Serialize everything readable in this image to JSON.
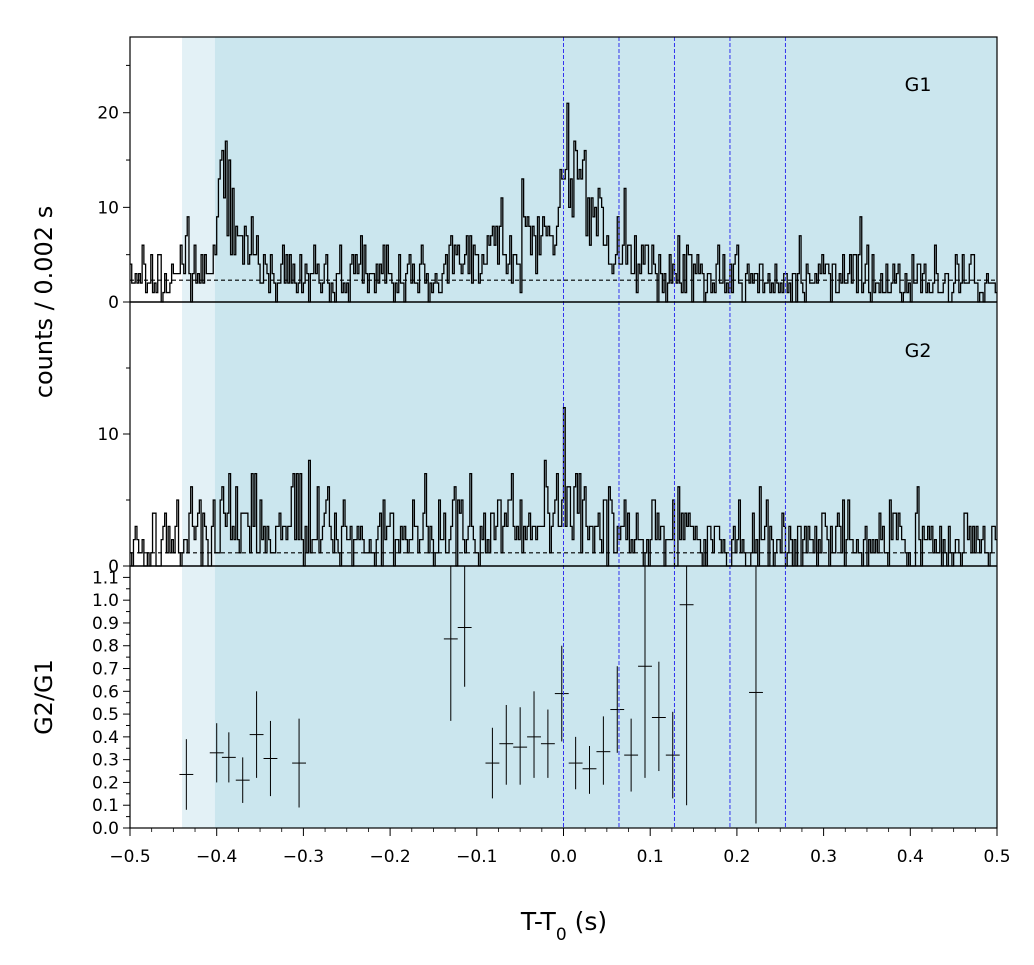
{
  "chart_data": [
    {
      "id": "g1",
      "type": "histogram",
      "panel_label": "G1",
      "ylabel": "counts /  0.002 s",
      "xlim": [
        -0.5,
        0.5
      ],
      "ylim": [
        0,
        28
      ],
      "yticks": [
        0,
        10,
        20
      ],
      "background_level": 2.3,
      "lightcurve_anchors": [
        [
          -0.5,
          2
        ],
        [
          -0.46,
          2.5
        ],
        [
          -0.44,
          3
        ],
        [
          -0.43,
          5
        ],
        [
          -0.41,
          3
        ],
        [
          -0.405,
          4
        ],
        [
          -0.4,
          8
        ],
        [
          -0.395,
          14
        ],
        [
          -0.393,
          18.5
        ],
        [
          -0.39,
          12
        ],
        [
          -0.38,
          7
        ],
        [
          -0.36,
          6
        ],
        [
          -0.35,
          4
        ],
        [
          -0.33,
          3
        ],
        [
          -0.3,
          2.5
        ],
        [
          -0.25,
          2.3
        ],
        [
          -0.2,
          2.5
        ],
        [
          -0.15,
          3
        ],
        [
          -0.12,
          4.5
        ],
        [
          -0.1,
          5
        ],
        [
          -0.08,
          6
        ],
        [
          -0.05,
          5
        ],
        [
          -0.03,
          6
        ],
        [
          -0.01,
          8
        ],
        [
          0.0,
          10
        ],
        [
          0.01,
          12
        ],
        [
          0.02,
          14
        ],
        [
          0.025,
          16.3
        ],
        [
          0.03,
          12
        ],
        [
          0.04,
          9
        ],
        [
          0.05,
          7
        ],
        [
          0.06,
          6
        ],
        [
          0.07,
          5
        ],
        [
          0.08,
          4
        ],
        [
          0.1,
          3.5
        ],
        [
          0.12,
          4
        ],
        [
          0.13,
          3
        ],
        [
          0.15,
          2.5
        ],
        [
          0.2,
          2.3
        ],
        [
          0.3,
          2.3
        ],
        [
          0.4,
          2.3
        ],
        [
          0.5,
          2.5
        ]
      ],
      "overlay": {
        "label": "G2",
        "scale": 0.55
      }
    },
    {
      "id": "g2",
      "type": "histogram",
      "panel_label": "G2",
      "xlim": [
        -0.5,
        0.5
      ],
      "ylim": [
        0,
        20
      ],
      "yticks": [
        0,
        10
      ],
      "background_level": 1.0,
      "lightcurve_anchors": [
        [
          -0.5,
          1
        ],
        [
          -0.45,
          1.5
        ],
        [
          -0.42,
          2.5
        ],
        [
          -0.4,
          3
        ],
        [
          -0.35,
          3.5
        ],
        [
          -0.3,
          2.5
        ],
        [
          -0.25,
          2
        ],
        [
          -0.2,
          2.5
        ],
        [
          -0.15,
          2.5
        ],
        [
          -0.1,
          3
        ],
        [
          -0.05,
          3.5
        ],
        [
          -0.02,
          4
        ],
        [
          0.0,
          5.5
        ],
        [
          0.02,
          4
        ],
        [
          0.05,
          3.5
        ],
        [
          0.07,
          3
        ],
        [
          0.1,
          2.5
        ],
        [
          0.15,
          2.2
        ],
        [
          0.2,
          2
        ],
        [
          0.3,
          1.8
        ],
        [
          0.4,
          1.8
        ],
        [
          0.5,
          2
        ]
      ]
    },
    {
      "id": "ratio",
      "type": "scatter",
      "ylabel": "G2/G1",
      "xlabel_main": "T-T",
      "xlabel_sub": "0",
      "xlabel_tail": " (s)",
      "xlim": [
        -0.5,
        0.5
      ],
      "ylim": [
        0,
        1.15
      ],
      "yticks": [
        0.0,
        0.1,
        0.2,
        0.3,
        0.4,
        0.5,
        0.6,
        0.7,
        0.8,
        0.9,
        1.0,
        1.1
      ],
      "ytick_labels": [
        "0.0",
        "0.1",
        "0.2",
        "0.3",
        "0.4",
        "0.5",
        "0.6",
        "0.7",
        "0.8",
        "0.9",
        "1.0",
        "1.1"
      ],
      "xticks": [
        -0.5,
        -0.4,
        -0.3,
        -0.2,
        -0.1,
        0.0,
        0.1,
        0.2,
        0.3,
        0.4,
        0.5
      ],
      "xtick_labels": [
        "−0.5",
        "−0.4",
        "−0.3",
        "−0.2",
        "−0.1",
        "0.0",
        "0.1",
        "0.2",
        "0.3",
        "0.4",
        "0.5"
      ],
      "points": [
        {
          "x": -0.435,
          "xerr": 0.008,
          "y": 0.235,
          "ylo": 0.08,
          "yhi": 0.39
        },
        {
          "x": -0.4,
          "xerr": 0.008,
          "y": 0.33,
          "ylo": 0.2,
          "yhi": 0.46
        },
        {
          "x": -0.386,
          "xerr": 0.008,
          "y": 0.31,
          "ylo": 0.2,
          "yhi": 0.42
        },
        {
          "x": -0.37,
          "xerr": 0.008,
          "y": 0.21,
          "ylo": 0.11,
          "yhi": 0.31
        },
        {
          "x": -0.354,
          "xerr": 0.008,
          "y": 0.41,
          "ylo": 0.22,
          "yhi": 0.6
        },
        {
          "x": -0.338,
          "xerr": 0.008,
          "y": 0.305,
          "ylo": 0.14,
          "yhi": 0.47
        },
        {
          "x": -0.305,
          "xerr": 0.008,
          "y": 0.285,
          "ylo": 0.09,
          "yhi": 0.48
        },
        {
          "x": -0.13,
          "xerr": 0.008,
          "y": 0.83,
          "ylo": 0.47,
          "yhi": 1.15
        },
        {
          "x": -0.114,
          "xerr": 0.008,
          "y": 0.88,
          "ylo": 0.62,
          "yhi": 1.15
        },
        {
          "x": -0.082,
          "xerr": 0.008,
          "y": 0.285,
          "ylo": 0.13,
          "yhi": 0.44
        },
        {
          "x": -0.066,
          "xerr": 0.008,
          "y": 0.37,
          "ylo": 0.19,
          "yhi": 0.54
        },
        {
          "x": -0.05,
          "xerr": 0.008,
          "y": 0.355,
          "ylo": 0.19,
          "yhi": 0.53
        },
        {
          "x": -0.034,
          "xerr": 0.008,
          "y": 0.4,
          "ylo": 0.22,
          "yhi": 0.6
        },
        {
          "x": -0.018,
          "xerr": 0.008,
          "y": 0.37,
          "ylo": 0.22,
          "yhi": 0.52
        },
        {
          "x": -0.002,
          "xerr": 0.008,
          "y": 0.59,
          "ylo": 0.38,
          "yhi": 0.8
        },
        {
          "x": 0.014,
          "xerr": 0.008,
          "y": 0.285,
          "ylo": 0.17,
          "yhi": 0.4
        },
        {
          "x": 0.03,
          "xerr": 0.008,
          "y": 0.26,
          "ylo": 0.15,
          "yhi": 0.36
        },
        {
          "x": 0.046,
          "xerr": 0.008,
          "y": 0.335,
          "ylo": 0.19,
          "yhi": 0.49
        },
        {
          "x": 0.062,
          "xerr": 0.008,
          "y": 0.52,
          "ylo": 0.33,
          "yhi": 0.71
        },
        {
          "x": 0.078,
          "xerr": 0.008,
          "y": 0.32,
          "ylo": 0.16,
          "yhi": 0.48
        },
        {
          "x": 0.094,
          "xerr": 0.008,
          "y": 0.71,
          "ylo": 0.22,
          "yhi": 1.15
        },
        {
          "x": 0.11,
          "xerr": 0.008,
          "y": 0.485,
          "ylo": 0.25,
          "yhi": 0.73
        },
        {
          "x": 0.126,
          "xerr": 0.008,
          "y": 0.32,
          "ylo": 0.13,
          "yhi": 0.51
        },
        {
          "x": 0.142,
          "xerr": 0.008,
          "y": 0.98,
          "ylo": 0.1,
          "yhi": 1.15
        },
        {
          "x": 0.222,
          "xerr": 0.008,
          "y": 0.595,
          "ylo": 0.02,
          "yhi": 1.15
        }
      ]
    }
  ],
  "shading": {
    "light_band": [
      -0.44,
      -0.402
    ],
    "main_band": [
      -0.402,
      0.5
    ],
    "light_color": "#e3f1f6",
    "main_color": "#cbe6ee"
  },
  "vlines": {
    "x": [
      0.0,
      0.064,
      0.128,
      0.192,
      0.256
    ],
    "color": "#3333ee"
  },
  "colors": {
    "line": "#000000",
    "axis": "#000000"
  }
}
